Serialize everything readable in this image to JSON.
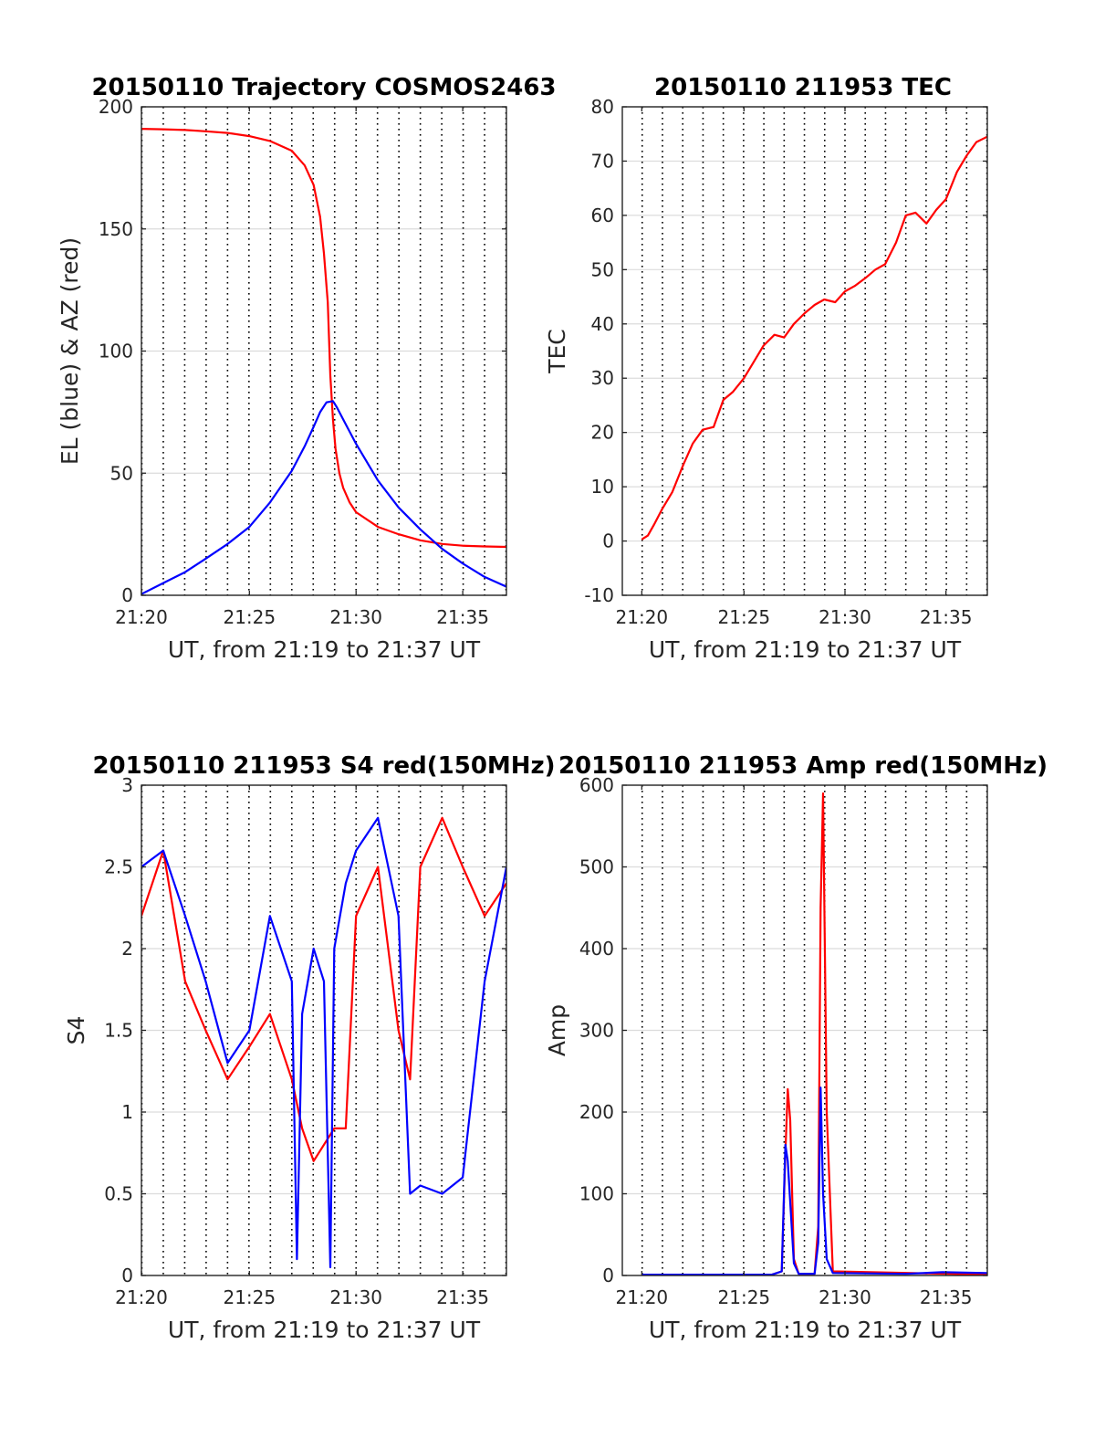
{
  "figure": {
    "background": "#ffffff",
    "colors": {
      "red": "#ff0000",
      "blue": "#0000ff",
      "axis": "#262626",
      "grid": "#dcdcdc",
      "vline": "#000000"
    }
  },
  "chart_data": [
    {
      "id": "trajectory",
      "type": "line",
      "title": "20150110 Trajectory COSMOS2463",
      "xlabel": "UT, from 21:19 to 21:37 UT",
      "ylabel": "EL (blue) & AZ (red)",
      "xlim": [
        21.333,
        21.617
      ],
      "ylim": [
        0,
        200
      ],
      "xticks": [
        21.333,
        21.417,
        21.5,
        21.583
      ],
      "xtick_labels": [
        "21:20",
        "21:25",
        "21:30",
        "21:35"
      ],
      "yticks": [
        0,
        50,
        100,
        150,
        200
      ],
      "ytick_labels": [
        "0",
        "50",
        "100",
        "150",
        "200"
      ],
      "grid": "horizontal",
      "vertical_dotted_lines": true,
      "series": [
        {
          "color": "#ff0000",
          "x": [
            21.333,
            21.35,
            21.367,
            21.383,
            21.4,
            21.417,
            21.433,
            21.45,
            21.46,
            21.467,
            21.472,
            21.475,
            21.478,
            21.48,
            21.482,
            21.484,
            21.487,
            21.49,
            21.495,
            21.5,
            21.517,
            21.533,
            21.55,
            21.567,
            21.583,
            21.6,
            21.617
          ],
          "values": [
            191,
            190.8,
            190.5,
            190,
            189.3,
            188,
            186,
            182,
            176,
            168,
            155,
            140,
            120,
            90,
            72,
            60,
            50,
            44,
            38,
            34,
            28,
            25,
            22.5,
            21,
            20.3,
            20,
            19.8
          ]
        },
        {
          "color": "#0000ff",
          "x": [
            21.333,
            21.35,
            21.367,
            21.383,
            21.4,
            21.417,
            21.433,
            21.45,
            21.46,
            21.467,
            21.472,
            21.477,
            21.482,
            21.485,
            21.49,
            21.5,
            21.517,
            21.533,
            21.55,
            21.567,
            21.583,
            21.6,
            21.617
          ],
          "values": [
            0.5,
            5,
            9.5,
            15,
            21,
            28,
            38,
            51,
            61,
            69,
            75,
            79,
            79.5,
            77,
            72,
            62,
            47,
            36,
            27,
            19,
            13,
            7.5,
            3.5
          ]
        }
      ]
    },
    {
      "id": "tec",
      "type": "line",
      "title": "20150110 211953 TEC",
      "xlabel": "UT, from 21:19 to 21:37 UT",
      "ylabel": "TEC",
      "xlim": [
        21.317,
        21.617
      ],
      "ylim": [
        -10,
        80
      ],
      "xticks": [
        21.333,
        21.417,
        21.5,
        21.583
      ],
      "xtick_labels": [
        "21:20",
        "21:25",
        "21:30",
        "21:35"
      ],
      "yticks": [
        -10,
        0,
        10,
        20,
        30,
        40,
        50,
        60,
        70,
        80
      ],
      "ytick_labels": [
        "-10",
        "0",
        "10",
        "20",
        "30",
        "40",
        "50",
        "60",
        "70",
        "80"
      ],
      "grid": "horizontal",
      "vertical_dotted_lines": true,
      "series": [
        {
          "color": "#ff0000",
          "x": [
            21.333,
            21.338,
            21.343,
            21.35,
            21.358,
            21.367,
            21.375,
            21.383,
            21.392,
            21.4,
            21.408,
            21.417,
            21.425,
            21.433,
            21.442,
            21.45,
            21.458,
            21.467,
            21.475,
            21.483,
            21.492,
            21.5,
            21.508,
            21.517,
            21.525,
            21.533,
            21.542,
            21.55,
            21.558,
            21.567,
            21.575,
            21.583,
            21.592,
            21.6,
            21.608,
            21.617
          ],
          "values": [
            0.3,
            1,
            3,
            6,
            9,
            14,
            18,
            20.5,
            21,
            26,
            27.5,
            30,
            33,
            36,
            38,
            37.5,
            40,
            42,
            43.5,
            44.5,
            44,
            46,
            47,
            48.5,
            50,
            51,
            55,
            60,
            60.5,
            58.5,
            61,
            63,
            68,
            71,
            73.5,
            74.5
          ]
        }
      ]
    },
    {
      "id": "s4",
      "type": "line",
      "title": "20150110 211953 S4 red(150MHz)",
      "xlabel": "UT, from 21:19 to 21:37 UT",
      "ylabel": "S4",
      "xlim": [
        21.333,
        21.617
      ],
      "ylim": [
        0,
        3
      ],
      "xticks": [
        21.333,
        21.417,
        21.5,
        21.583
      ],
      "xtick_labels": [
        "21:20",
        "21:25",
        "21:30",
        "21:35"
      ],
      "yticks": [
        0,
        0.5,
        1,
        1.5,
        2,
        2.5,
        3
      ],
      "ytick_labels": [
        "0",
        "0.5",
        "1",
        "1.5",
        "2",
        "2.5",
        "3"
      ],
      "grid": "horizontal",
      "vertical_dotted_lines": true,
      "series": [
        {
          "color": "#ff0000",
          "x": [
            21.333,
            21.35,
            21.367,
            21.383,
            21.4,
            21.417,
            21.433,
            21.45,
            21.458,
            21.467,
            21.475,
            21.483,
            21.492,
            21.5,
            21.517,
            21.533,
            21.542,
            21.55,
            21.567,
            21.583,
            21.6,
            21.617
          ],
          "values": [
            2.2,
            2.6,
            1.8,
            1.5,
            1.2,
            1.4,
            1.6,
            1.2,
            0.9,
            0.7,
            0.8,
            0.9,
            0.9,
            2.2,
            2.5,
            1.5,
            1.2,
            2.5,
            2.8,
            2.5,
            2.2,
            2.4
          ]
        },
        {
          "color": "#0000ff",
          "x": [
            21.333,
            21.35,
            21.367,
            21.383,
            21.4,
            21.417,
            21.433,
            21.45,
            21.454,
            21.458,
            21.467,
            21.475,
            21.48,
            21.483,
            21.492,
            21.5,
            21.517,
            21.533,
            21.542,
            21.55,
            21.567,
            21.583,
            21.6,
            21.617
          ],
          "values": [
            2.5,
            2.6,
            2.2,
            1.8,
            1.3,
            1.5,
            2.2,
            1.8,
            0.1,
            1.6,
            2.0,
            1.8,
            0.05,
            2.0,
            2.4,
            2.6,
            2.8,
            2.2,
            0.5,
            0.55,
            0.5,
            0.6,
            1.8,
            2.5
          ]
        }
      ]
    },
    {
      "id": "amp",
      "type": "line",
      "title": "20150110 211953 Amp red(150MHz)",
      "xlabel": "UT, from 21:19 to 21:37 UT",
      "ylabel": "Amp",
      "xlim": [
        21.317,
        21.617
      ],
      "ylim": [
        0,
        600
      ],
      "xticks": [
        21.333,
        21.417,
        21.5,
        21.583
      ],
      "xtick_labels": [
        "21:20",
        "21:25",
        "21:30",
        "21:35"
      ],
      "yticks": [
        0,
        100,
        200,
        300,
        400,
        500,
        600
      ],
      "ytick_labels": [
        "0",
        "100",
        "200",
        "300",
        "400",
        "500",
        "600"
      ],
      "grid": "horizontal",
      "vertical_dotted_lines": true,
      "series": [
        {
          "color": "#ff0000",
          "x": [
            21.333,
            21.44,
            21.448,
            21.451,
            21.453,
            21.455,
            21.458,
            21.462,
            21.475,
            21.478,
            21.48,
            21.482,
            21.485,
            21.49,
            21.617
          ],
          "values": [
            1,
            1,
            5,
            150,
            228,
            190,
            20,
            2,
            2,
            60,
            450,
            590,
            200,
            5,
            1
          ]
        },
        {
          "color": "#0000ff",
          "x": [
            21.333,
            21.44,
            21.448,
            21.451,
            21.453,
            21.458,
            21.462,
            21.475,
            21.478,
            21.48,
            21.482,
            21.485,
            21.49,
            21.55,
            21.58,
            21.617
          ],
          "values": [
            1,
            1,
            5,
            160,
            140,
            15,
            2,
            2,
            40,
            230,
            100,
            20,
            3,
            2,
            4,
            3
          ]
        }
      ]
    }
  ]
}
